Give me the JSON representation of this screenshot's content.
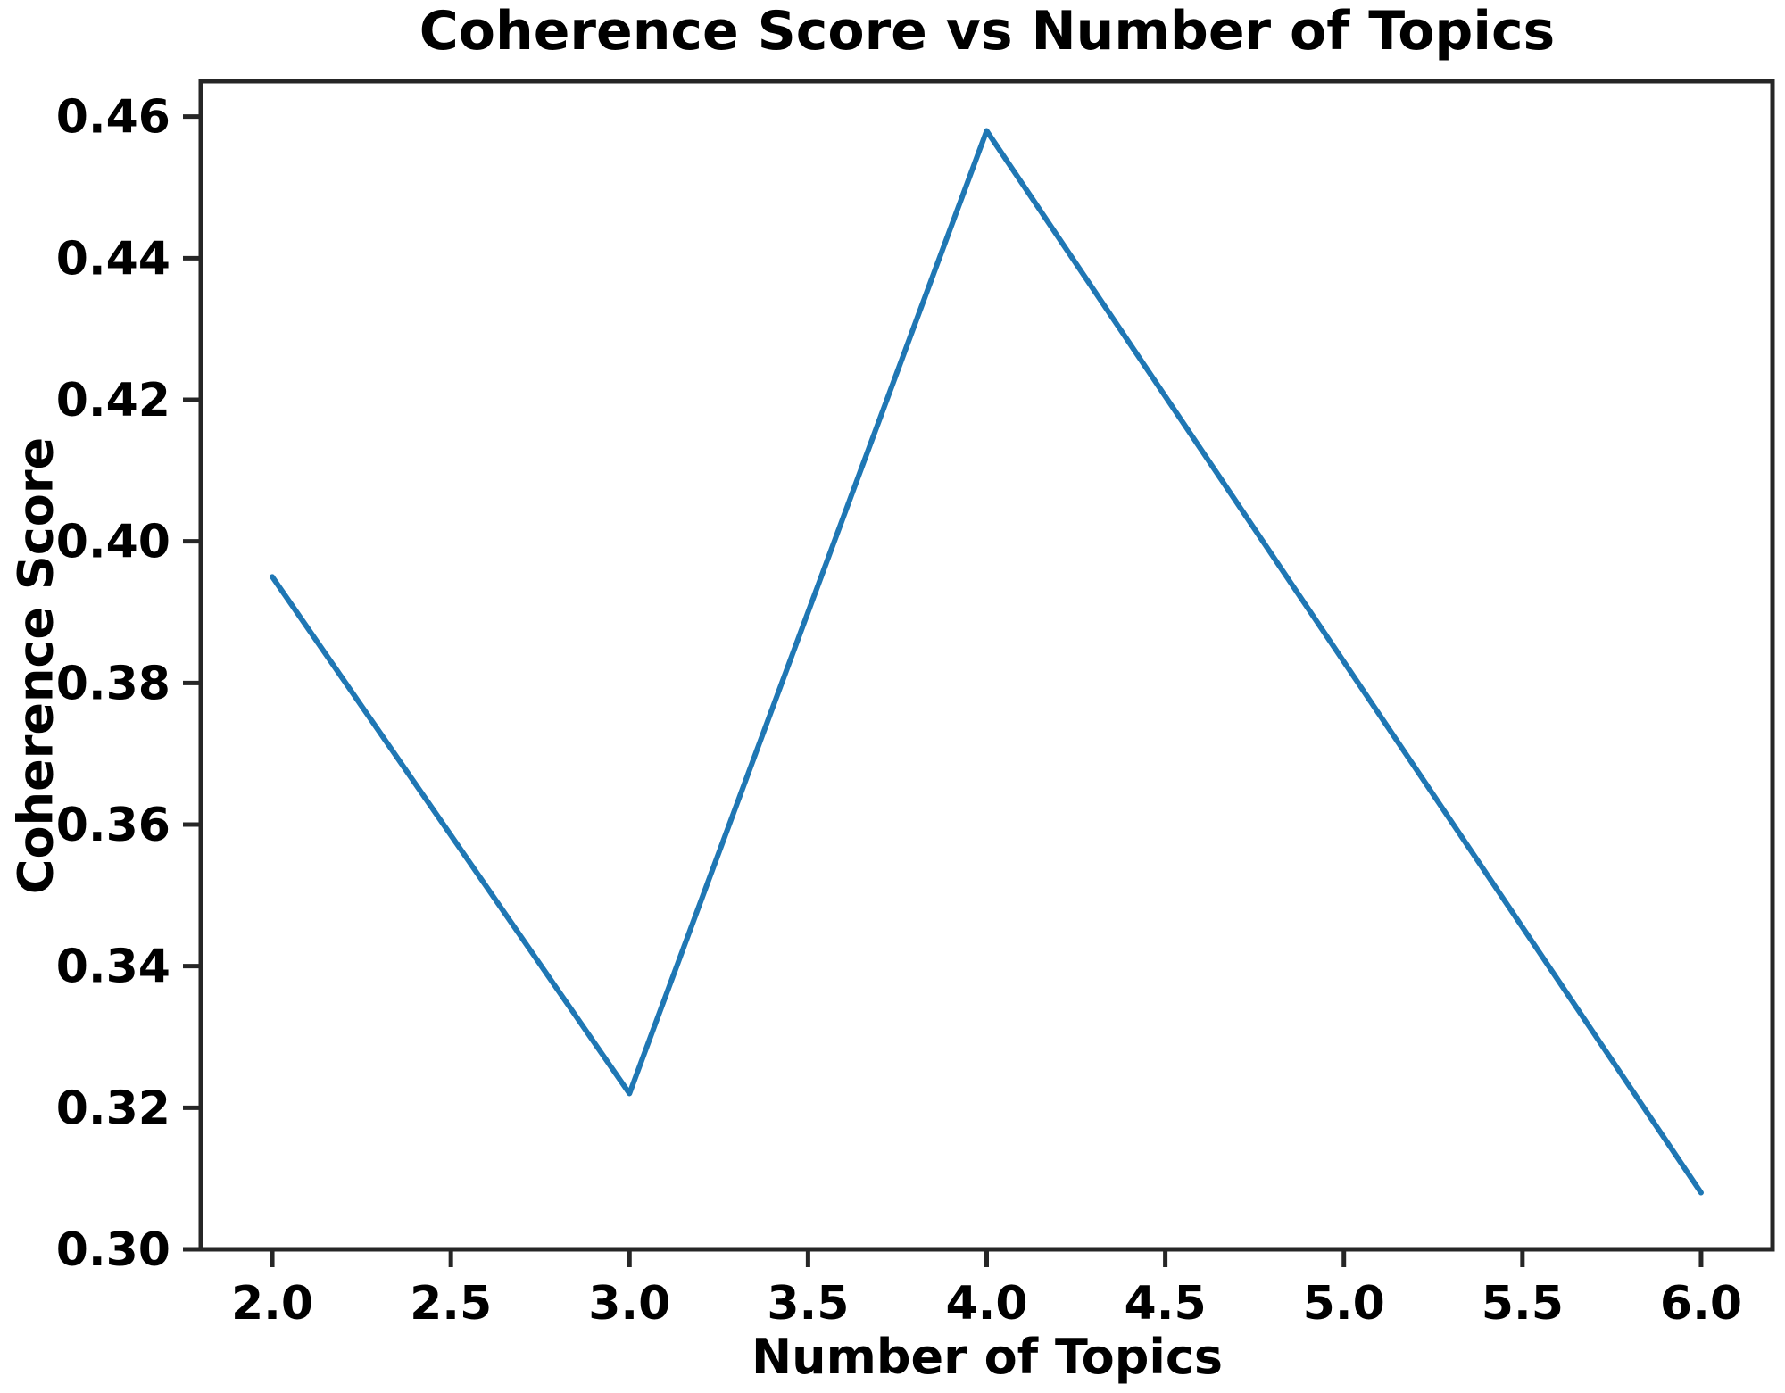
{
  "figure": {
    "background": "#ffffff"
  },
  "chart_data": {
    "type": "line",
    "title": "Coherence Score vs Number of Topics",
    "xlabel": "Number of Topics",
    "ylabel": "Coherence Score",
    "x": [
      2,
      3,
      4,
      6
    ],
    "y": [
      0.395,
      0.322,
      0.458,
      0.308
    ],
    "xlim": [
      1.8,
      6.2
    ],
    "ylim": [
      0.3,
      0.465
    ],
    "x_ticks": {
      "values": [
        2.0,
        2.5,
        3.0,
        3.5,
        4.0,
        4.5,
        5.0,
        5.5,
        6.0
      ],
      "labels": [
        "2.0",
        "2.5",
        "3.0",
        "3.5",
        "4.0",
        "4.5",
        "5.0",
        "5.5",
        "6.0"
      ]
    },
    "y_ticks": {
      "values": [
        0.3,
        0.32,
        0.34,
        0.36,
        0.38,
        0.4,
        0.42,
        0.44,
        0.46
      ],
      "labels": [
        "0.30",
        "0.32",
        "0.34",
        "0.36",
        "0.38",
        "0.40",
        "0.42",
        "0.44",
        "0.46"
      ]
    },
    "grid": false,
    "legend": false,
    "line_color": "#1f77b4",
    "axis_color": "#262626",
    "text_color": "#000000"
  }
}
